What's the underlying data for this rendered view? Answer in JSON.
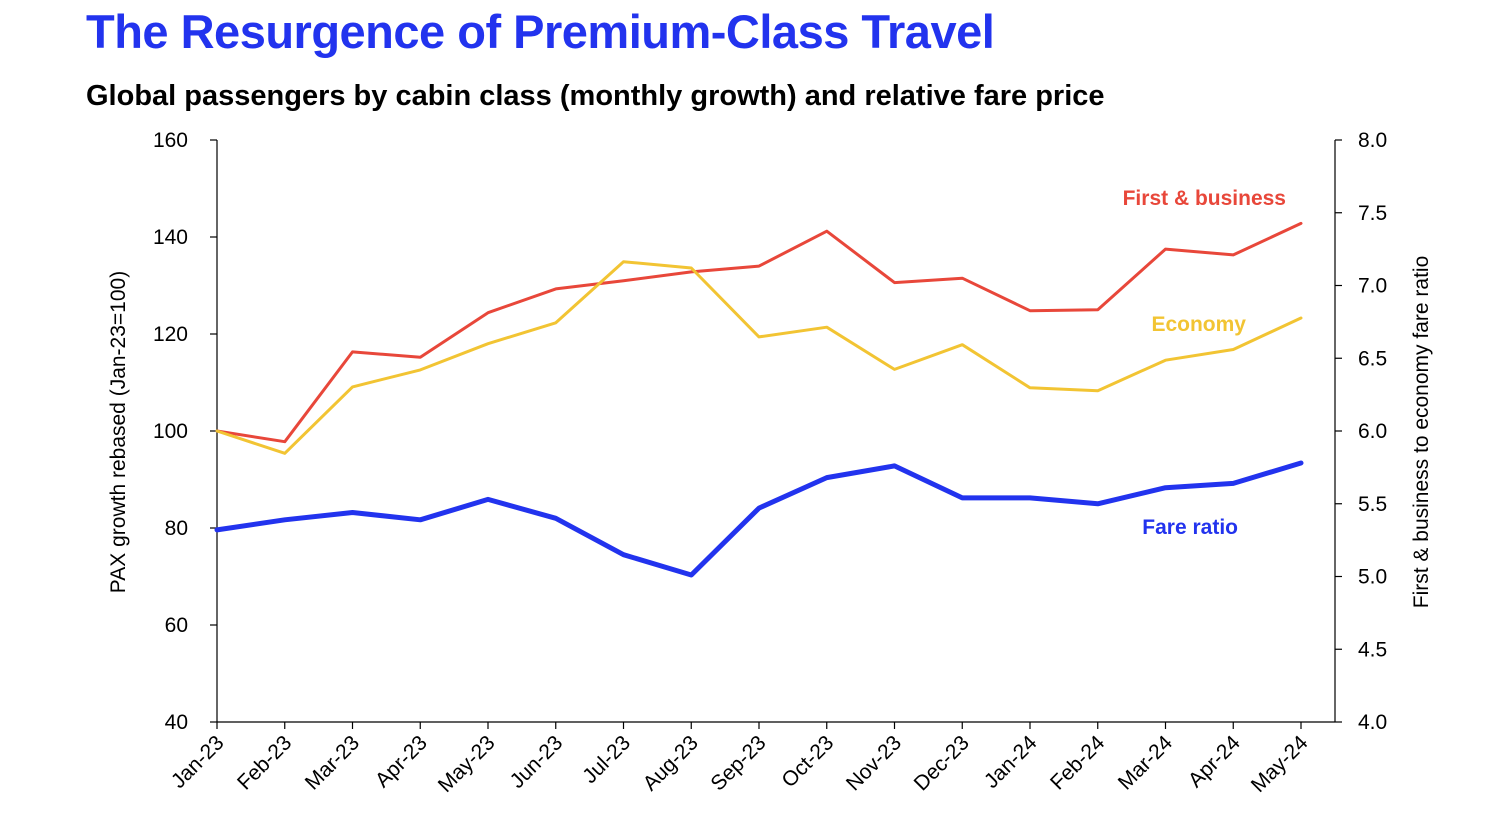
{
  "header": {
    "title": "The Resurgence of Premium-Class Travel",
    "subtitle": "Global passengers by cabin class (monthly growth) and relative fare price"
  },
  "chart_data": {
    "type": "line",
    "title": "The Resurgence of Premium-Class Travel",
    "subtitle": "Global passengers by cabin class (monthly growth) and relative fare price",
    "categories": [
      "Jan-23",
      "Feb-23",
      "Mar-23",
      "Apr-23",
      "May-23",
      "Jun-23",
      "Jul-23",
      "Aug-23",
      "Sep-23",
      "Oct-23",
      "Nov-23",
      "Dec-23",
      "Jan-24",
      "Feb-24",
      "Mar-24",
      "Apr-24",
      "May-24"
    ],
    "ylabel": "PAX growth rebased (Jan-23=100)",
    "ylim": [
      40,
      160
    ],
    "yticks": [
      "40",
      "60",
      "80",
      "100",
      "120",
      "140",
      "160"
    ],
    "y2label": "First & business to economy fare ratio",
    "y2lim": [
      4.0,
      8.0
    ],
    "y2ticks": [
      "4.0",
      "4.5",
      "5.0",
      "5.5",
      "6.0",
      "6.5",
      "7.0",
      "7.5",
      "8.0"
    ],
    "grid": false,
    "legend": "inline labels next to lines",
    "series": [
      {
        "name": "First & business",
        "axis": "left",
        "color": "#e8473a",
        "values": [
          100,
          97.8,
          116.3,
          115.2,
          124.4,
          129.3,
          131.0,
          132.8,
          134.0,
          141.2,
          130.6,
          131.5,
          124.8,
          125.0,
          137.5,
          136.3,
          142.8
        ]
      },
      {
        "name": "Economy",
        "axis": "left",
        "color": "#f2c433",
        "values": [
          100,
          95.4,
          109.1,
          112.6,
          118.0,
          122.3,
          134.9,
          133.6,
          119.4,
          121.4,
          112.7,
          117.8,
          108.9,
          108.3,
          114.6,
          116.8,
          123.3
        ]
      },
      {
        "name": "Fare ratio",
        "axis": "right",
        "color": "#2233ee",
        "values": [
          5.32,
          5.39,
          5.44,
          5.39,
          5.53,
          5.4,
          5.15,
          5.01,
          5.47,
          5.68,
          5.76,
          5.54,
          5.54,
          5.5,
          5.61,
          5.64,
          5.78
        ]
      }
    ]
  }
}
